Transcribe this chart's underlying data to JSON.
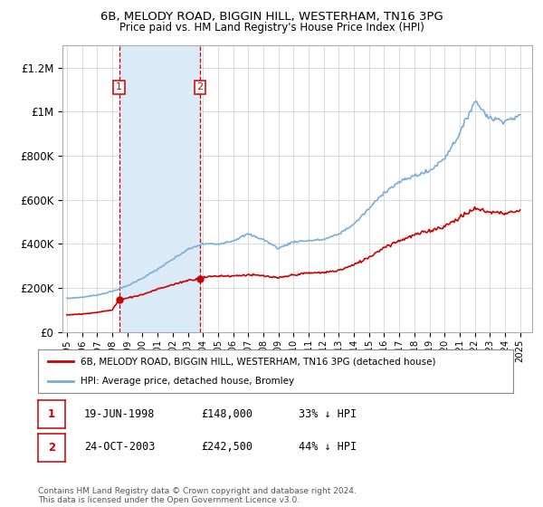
{
  "title": "6B, MELODY ROAD, BIGGIN HILL, WESTERHAM, TN16 3PG",
  "subtitle": "Price paid vs. HM Land Registry's House Price Index (HPI)",
  "ylim": [
    0,
    1300000
  ],
  "yticks": [
    0,
    200000,
    400000,
    600000,
    800000,
    1000000,
    1200000
  ],
  "ytick_labels": [
    "£0",
    "£200K",
    "£400K",
    "£600K",
    "£800K",
    "£1M",
    "£1.2M"
  ],
  "xlim_start": 1994.7,
  "xlim_end": 2025.8,
  "xtick_years": [
    1995,
    1996,
    1997,
    1998,
    1999,
    2000,
    2001,
    2002,
    2003,
    2004,
    2005,
    2006,
    2007,
    2008,
    2009,
    2010,
    2011,
    2012,
    2013,
    2014,
    2015,
    2016,
    2017,
    2018,
    2019,
    2020,
    2021,
    2022,
    2023,
    2024,
    2025
  ],
  "purchase1_x": 1998.46,
  "purchase1_y": 148000,
  "purchase1_label": "19-JUN-1998",
  "purchase1_price": "£148,000",
  "purchase1_hpi": "33% ↓ HPI",
  "purchase2_x": 2003.81,
  "purchase2_y": 242500,
  "purchase2_label": "24-OCT-2003",
  "purchase2_price": "£242,500",
  "purchase2_hpi": "44% ↓ HPI",
  "legend_line1": "6B, MELODY ROAD, BIGGIN HILL, WESTERHAM, TN16 3PG (detached house)",
  "legend_line2": "HPI: Average price, detached house, Bromley",
  "footer": "Contains HM Land Registry data © Crown copyright and database right 2024.\nThis data is licensed under the Open Government Licence v3.0.",
  "line_color_red": "#cc0000",
  "line_color_blue": "#7aaddb",
  "shade_color": "#dbeaf7",
  "marker_box_color": "#cc0000",
  "bg_color": "#ffffff",
  "grid_color": "#cccccc"
}
